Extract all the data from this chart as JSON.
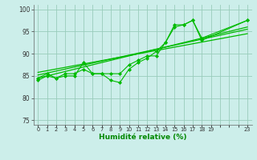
{
  "background_color": "#cceeea",
  "grid_color": "#99ccbb",
  "line_color": "#00bb00",
  "marker_color": "#00bb00",
  "xlabel": "Humidité relative (%)",
  "xlabel_color": "#008800",
  "ylim": [
    74,
    101
  ],
  "yticks": [
    75,
    80,
    85,
    90,
    95,
    100
  ],
  "xlim": [
    -0.5,
    23.5
  ],
  "xtick_labels": [
    "0",
    "1",
    "2",
    "3",
    "4",
    "5",
    "6",
    "7",
    "8",
    "9",
    "10",
    "11",
    "12",
    "13",
    "14",
    "15",
    "16",
    "17",
    "18",
    "19",
    "",
    "",
    "",
    "23"
  ],
  "xtick_positions": [
    0,
    1,
    2,
    3,
    4,
    5,
    6,
    7,
    8,
    9,
    10,
    11,
    12,
    13,
    14,
    15,
    16,
    17,
    18,
    19,
    20,
    21,
    22,
    23
  ],
  "series1": [
    [
      0,
      84
    ],
    [
      1,
      85
    ],
    [
      2,
      84.5
    ],
    [
      3,
      85
    ],
    [
      4,
      85
    ],
    [
      5,
      88
    ],
    [
      6,
      85.5
    ],
    [
      7,
      85.5
    ],
    [
      8,
      84
    ],
    [
      9,
      83.5
    ],
    [
      10,
      86.5
    ],
    [
      11,
      88
    ],
    [
      12,
      89
    ],
    [
      13,
      90.5
    ],
    [
      14,
      92.5
    ],
    [
      15,
      96
    ],
    [
      16,
      96.5
    ],
    [
      17,
      97.5
    ],
    [
      18,
      93
    ],
    [
      23,
      97.5
    ]
  ],
  "series2": [
    [
      0,
      84.5
    ],
    [
      1,
      85.5
    ],
    [
      2,
      84.5
    ],
    [
      3,
      85.5
    ],
    [
      4,
      85.5
    ],
    [
      5,
      86.5
    ],
    [
      6,
      85.5
    ],
    [
      7,
      85.5
    ],
    [
      8,
      85.5
    ],
    [
      9,
      85.5
    ],
    [
      10,
      87.5
    ],
    [
      11,
      88.5
    ],
    [
      12,
      89.5
    ],
    [
      13,
      89.5
    ],
    [
      14,
      92.5
    ],
    [
      15,
      96.5
    ],
    [
      16,
      96.5
    ],
    [
      17,
      97.5
    ],
    [
      18,
      93.5
    ],
    [
      23,
      97.5
    ]
  ],
  "regression_line1": [
    [
      0,
      85.2
    ],
    [
      23,
      95.5
    ]
  ],
  "regression_line2": [
    [
      0,
      85.8
    ],
    [
      23,
      94.5
    ]
  ],
  "regression_line3": [
    [
      0,
      84.5
    ],
    [
      23,
      96.0
    ]
  ]
}
